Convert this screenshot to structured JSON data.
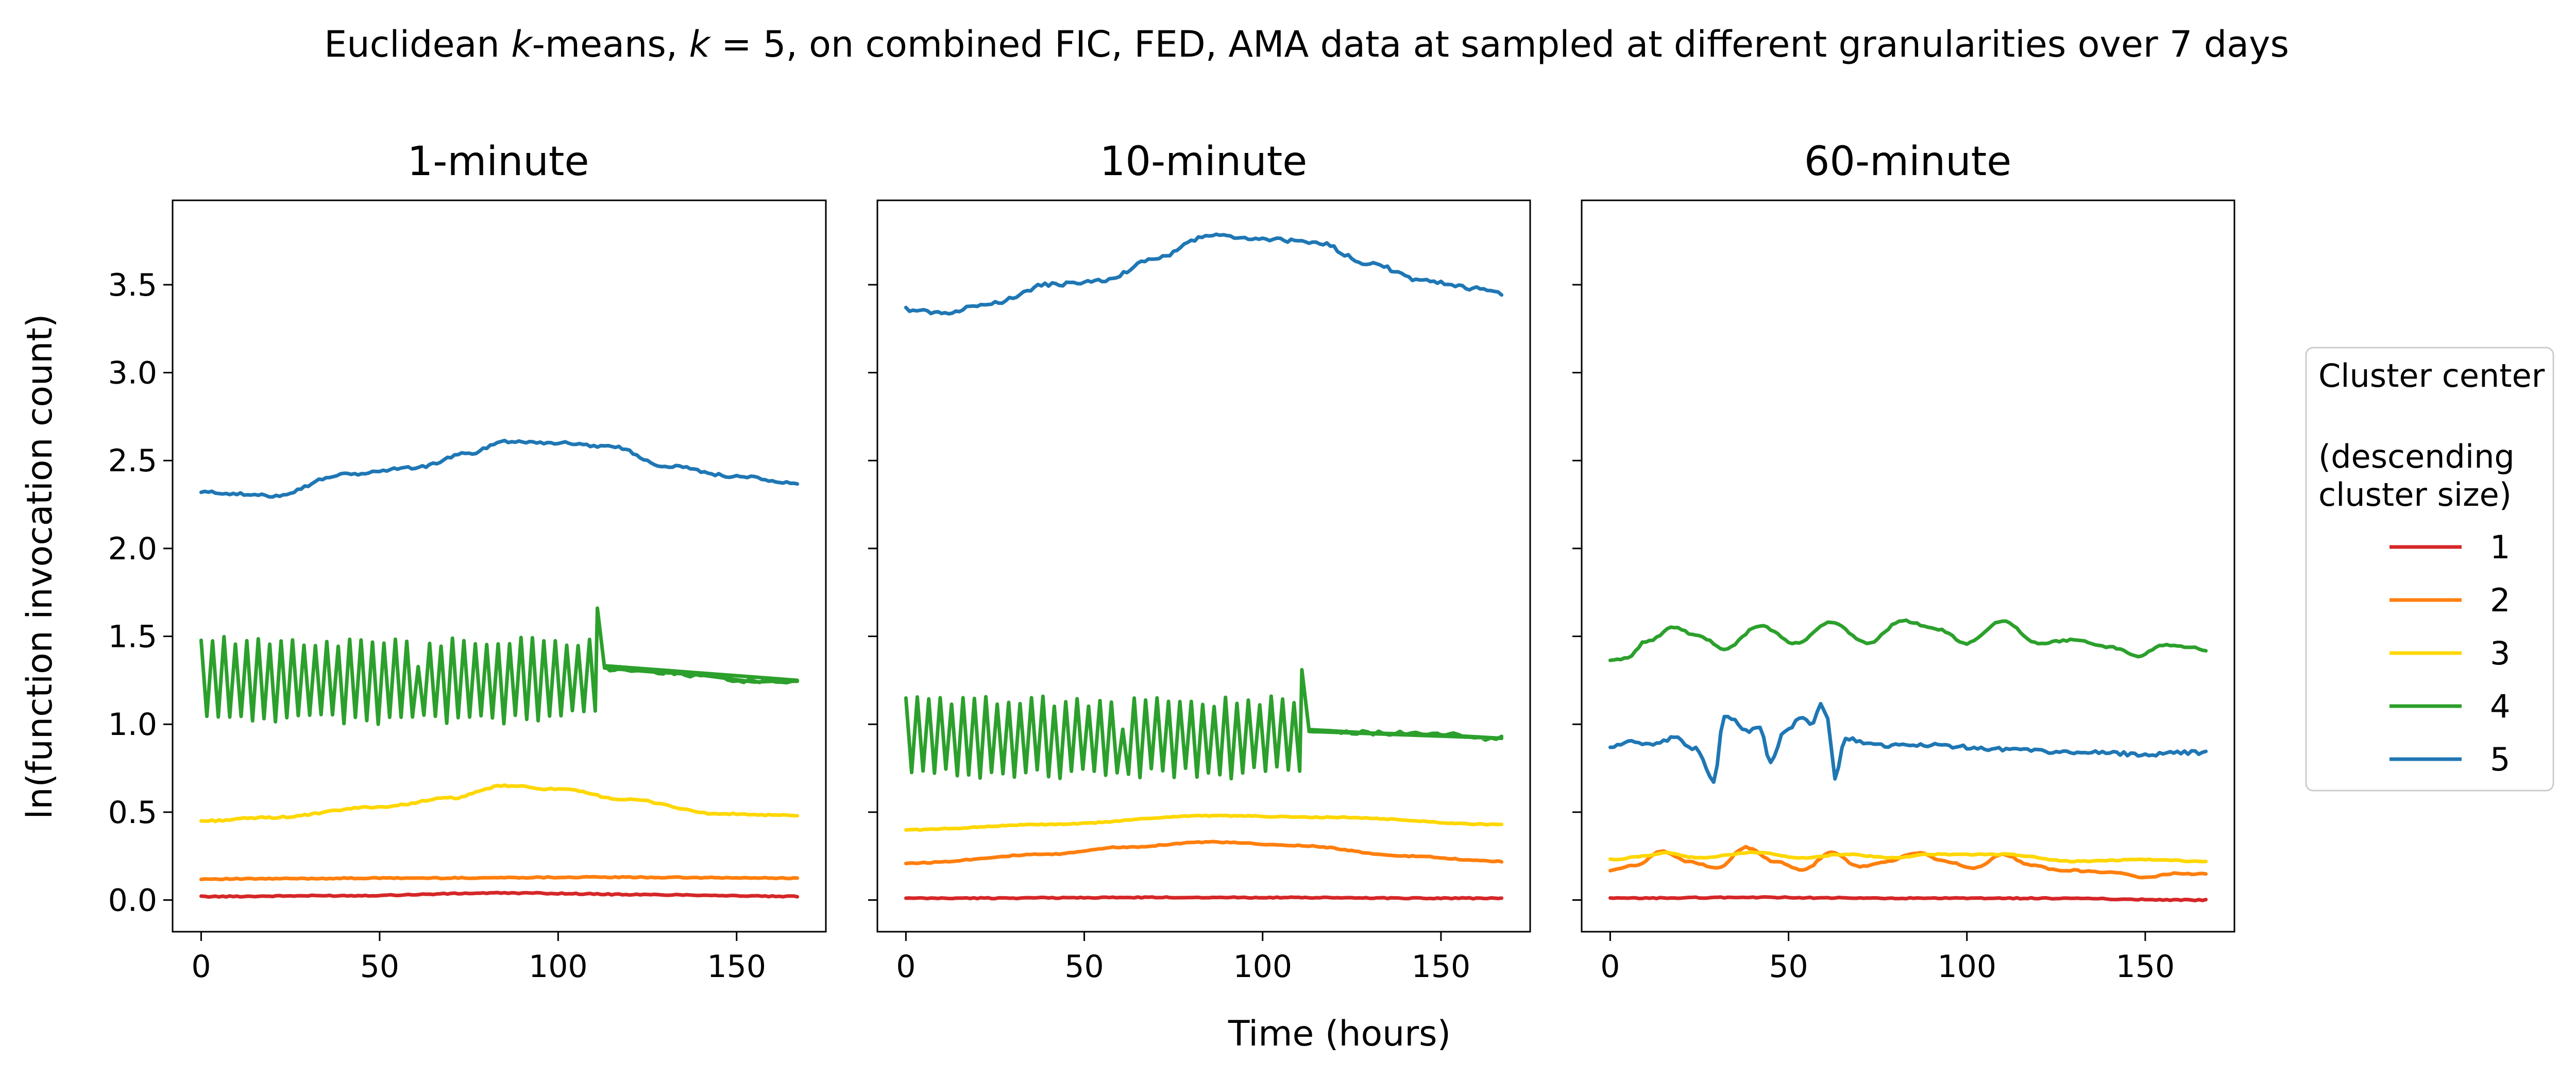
{
  "figure": {
    "title_prefix": "Euclidean ",
    "title_k": "k",
    "title_mid": "-means, ",
    "title_k2": "k",
    "title_suffix": " = 5, on combined FIC, FED, AMA data at sampled at different granularities over 7 days",
    "xlabel": "Time (hours)",
    "ylabel": "ln(function invocation count)"
  },
  "legend": {
    "title_line1": "Cluster center",
    "title_line2": "(descending",
    "title_line3": "cluster size)",
    "entries": [
      "1",
      "2",
      "3",
      "4",
      "5"
    ]
  },
  "colors": {
    "1": "#d62728",
    "2": "#ff7f0e",
    "3": "#ffd700",
    "4": "#2ca02c",
    "5": "#1f77b4"
  },
  "chart_data": [
    {
      "type": "line",
      "title": "1-minute",
      "xlim": [
        -8,
        175
      ],
      "ylim": [
        -0.18,
        3.98
      ],
      "xticks": [
        0,
        50,
        100,
        150
      ],
      "yticks": [
        0.0,
        0.5,
        1.0,
        1.5,
        2.0,
        2.5,
        3.0,
        3.5
      ],
      "ytick_labels": [
        "0.0",
        "0.5",
        "1.0",
        "1.5",
        "2.0",
        "2.5",
        "3.0",
        "3.5"
      ],
      "series": [
        {
          "name": "1",
          "pattern": "smooth",
          "points": [
            [
              0,
              0.02
            ],
            [
              40,
              0.025
            ],
            [
              85,
              0.04
            ],
            [
              130,
              0.03
            ],
            [
              167,
              0.02
            ]
          ]
        },
        {
          "name": "2",
          "pattern": "smooth",
          "points": [
            [
              0,
              0.12
            ],
            [
              60,
              0.125
            ],
            [
              110,
              0.13
            ],
            [
              167,
              0.125
            ]
          ]
        },
        {
          "name": "3",
          "pattern": "smooth",
          "points": [
            [
              0,
              0.45
            ],
            [
              20,
              0.47
            ],
            [
              50,
              0.53
            ],
            [
              70,
              0.58
            ],
            [
              85,
              0.65
            ],
            [
              100,
              0.63
            ],
            [
              120,
              0.57
            ],
            [
              145,
              0.49
            ],
            [
              167,
              0.48
            ]
          ]
        },
        {
          "name": "4",
          "pattern": "zigzag_then_smooth",
          "hi": 1.47,
          "lo": 1.03,
          "zigzag_until": 111,
          "points": [
            [
              111,
              1.66
            ],
            [
              113,
              1.32
            ],
            [
              125,
              1.3
            ],
            [
              140,
              1.28
            ],
            [
              155,
              1.24
            ],
            [
              167,
              1.25
            ]
          ]
        },
        {
          "name": "5",
          "pattern": "smooth",
          "points": [
            [
              0,
              2.32
            ],
            [
              20,
              2.3
            ],
            [
              40,
              2.42
            ],
            [
              60,
              2.46
            ],
            [
              75,
              2.54
            ],
            [
              85,
              2.61
            ],
            [
              100,
              2.6
            ],
            [
              115,
              2.58
            ],
            [
              130,
              2.47
            ],
            [
              150,
              2.41
            ],
            [
              167,
              2.37
            ]
          ]
        }
      ]
    },
    {
      "type": "line",
      "title": "10-minute",
      "xlim": [
        -8,
        175
      ],
      "ylim": [
        -0.18,
        3.98
      ],
      "xticks": [
        0,
        50,
        100,
        150
      ],
      "yticks": [
        0.0,
        0.5,
        1.0,
        1.5,
        2.0,
        2.5,
        3.0,
        3.5
      ],
      "series": [
        {
          "name": "1",
          "pattern": "smooth",
          "points": [
            [
              0,
              0.01
            ],
            [
              80,
              0.015
            ],
            [
              167,
              0.01
            ]
          ]
        },
        {
          "name": "2",
          "pattern": "smooth",
          "points": [
            [
              0,
              0.21
            ],
            [
              40,
              0.26
            ],
            [
              60,
              0.3
            ],
            [
              85,
              0.33
            ],
            [
              110,
              0.31
            ],
            [
              140,
              0.25
            ],
            [
              167,
              0.22
            ]
          ]
        },
        {
          "name": "3",
          "pattern": "smooth",
          "points": [
            [
              0,
              0.4
            ],
            [
              40,
              0.43
            ],
            [
              85,
              0.48
            ],
            [
              120,
              0.47
            ],
            [
              167,
              0.43
            ]
          ]
        },
        {
          "name": "4",
          "pattern": "zigzag_then_smooth",
          "hi": 1.13,
          "lo": 0.72,
          "zigzag_until": 111,
          "points": [
            [
              111,
              1.31
            ],
            [
              113,
              0.97
            ],
            [
              130,
              0.95
            ],
            [
              150,
              0.94
            ],
            [
              167,
              0.92
            ]
          ]
        },
        {
          "name": "5",
          "pattern": "smooth",
          "points": [
            [
              0,
              3.36
            ],
            [
              10,
              3.34
            ],
            [
              25,
              3.4
            ],
            [
              40,
              3.5
            ],
            [
              55,
              3.52
            ],
            [
              70,
              3.65
            ],
            [
              85,
              3.78
            ],
            [
              100,
              3.76
            ],
            [
              115,
              3.74
            ],
            [
              130,
              3.62
            ],
            [
              145,
              3.52
            ],
            [
              160,
              3.48
            ],
            [
              167,
              3.45
            ]
          ]
        }
      ]
    },
    {
      "type": "line",
      "title": "60-minute",
      "xlim": [
        -8,
        175
      ],
      "ylim": [
        -0.18,
        3.98
      ],
      "xticks": [
        0,
        50,
        100,
        150
      ],
      "yticks": [
        0.0,
        0.5,
        1.0,
        1.5,
        2.0,
        2.5,
        3.0,
        3.5
      ],
      "series": [
        {
          "name": "1",
          "pattern": "smooth",
          "points": [
            [
              0,
              0.01
            ],
            [
              40,
              0.015
            ],
            [
              80,
              0.01
            ],
            [
              120,
              0.01
            ],
            [
              167,
              0.0
            ]
          ]
        },
        {
          "name": "2",
          "pattern": "smooth",
          "points": [
            [
              0,
              0.17
            ],
            [
              8,
              0.2
            ],
            [
              14,
              0.28
            ],
            [
              22,
              0.22
            ],
            [
              30,
              0.18
            ],
            [
              38,
              0.3
            ],
            [
              46,
              0.22
            ],
            [
              54,
              0.17
            ],
            [
              62,
              0.27
            ],
            [
              70,
              0.19
            ],
            [
              78,
              0.22
            ],
            [
              86,
              0.27
            ],
            [
              94,
              0.22
            ],
            [
              102,
              0.18
            ],
            [
              110,
              0.26
            ],
            [
              118,
              0.2
            ],
            [
              126,
              0.17
            ],
            [
              140,
              0.16
            ],
            [
              150,
              0.13
            ],
            [
              158,
              0.15
            ],
            [
              167,
              0.15
            ]
          ]
        },
        {
          "name": "3",
          "pattern": "smooth",
          "points": [
            [
              0,
              0.23
            ],
            [
              10,
              0.25
            ],
            [
              15,
              0.27
            ],
            [
              25,
              0.24
            ],
            [
              40,
              0.27
            ],
            [
              55,
              0.24
            ],
            [
              65,
              0.26
            ],
            [
              80,
              0.24
            ],
            [
              90,
              0.26
            ],
            [
              110,
              0.26
            ],
            [
              130,
              0.22
            ],
            [
              150,
              0.23
            ],
            [
              167,
              0.22
            ]
          ]
        },
        {
          "name": "4",
          "pattern": "smooth",
          "points": [
            [
              0,
              1.36
            ],
            [
              5,
              1.38
            ],
            [
              10,
              1.47
            ],
            [
              18,
              1.55
            ],
            [
              25,
              1.5
            ],
            [
              32,
              1.43
            ],
            [
              42,
              1.56
            ],
            [
              52,
              1.46
            ],
            [
              62,
              1.58
            ],
            [
              72,
              1.46
            ],
            [
              82,
              1.59
            ],
            [
              92,
              1.54
            ],
            [
              100,
              1.46
            ],
            [
              110,
              1.59
            ],
            [
              120,
              1.46
            ],
            [
              130,
              1.48
            ],
            [
              140,
              1.44
            ],
            [
              148,
              1.39
            ],
            [
              155,
              1.45
            ],
            [
              162,
              1.44
            ],
            [
              167,
              1.42
            ]
          ]
        },
        {
          "name": "5",
          "pattern": "smooth",
          "points": [
            [
              0,
              0.87
            ],
            [
              5,
              0.9
            ],
            [
              12,
              0.88
            ],
            [
              18,
              0.92
            ],
            [
              24,
              0.86
            ],
            [
              29,
              0.68
            ],
            [
              32,
              1.05
            ],
            [
              35,
              1.02
            ],
            [
              38,
              0.96
            ],
            [
              42,
              0.98
            ],
            [
              45,
              0.78
            ],
            [
              49,
              0.96
            ],
            [
              54,
              1.04
            ],
            [
              57,
              1.0
            ],
            [
              59,
              1.12
            ],
            [
              61,
              1.04
            ],
            [
              63,
              0.69
            ],
            [
              66,
              0.92
            ],
            [
              75,
              0.88
            ],
            [
              90,
              0.88
            ],
            [
              110,
              0.86
            ],
            [
              130,
              0.84
            ],
            [
              150,
              0.83
            ],
            [
              167,
              0.84
            ]
          ]
        }
      ]
    }
  ]
}
